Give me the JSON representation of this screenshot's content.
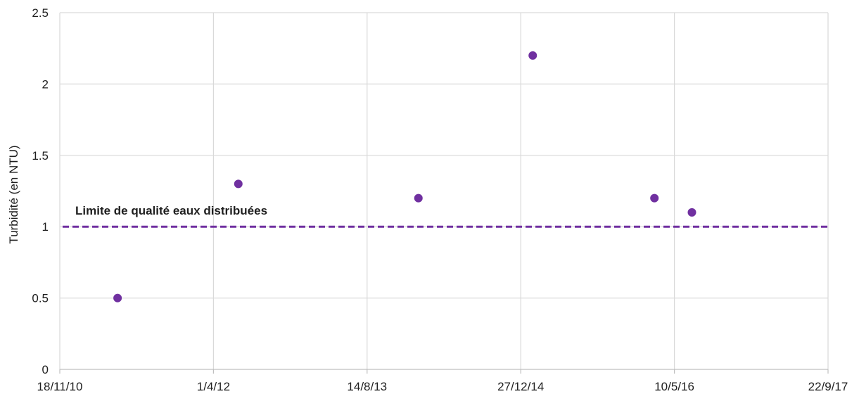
{
  "chart_data": {
    "type": "scatter",
    "ylabel": "Turbidité (en NTU)",
    "xlabel": "",
    "x_ticks": [
      "18/11/10",
      "1/4/12",
      "14/8/13",
      "27/12/14",
      "10/5/16",
      "22/9/17"
    ],
    "xlim": [
      "2010-11-18",
      "2017-09-22"
    ],
    "ylim": [
      0,
      2.5
    ],
    "y_ticks": [
      "0",
      "0.5",
      "1",
      "1.5",
      "2",
      "2.5"
    ],
    "grid": true,
    "points": [
      {
        "x": "2011-05-25",
        "y": 0.5
      },
      {
        "x": "2012-06-21",
        "y": 1.3
      },
      {
        "x": "2014-01-28",
        "y": 1.2
      },
      {
        "x": "2015-02-04",
        "y": 2.2
      },
      {
        "x": "2016-03-06",
        "y": 1.2
      },
      {
        "x": "2016-07-06",
        "y": 1.1
      }
    ],
    "marker_color": "#7030a0",
    "limit_line": {
      "label": "Limite de qualité eaux distribuées",
      "y": 1,
      "color": "#7030a0",
      "style": "dashed"
    }
  }
}
